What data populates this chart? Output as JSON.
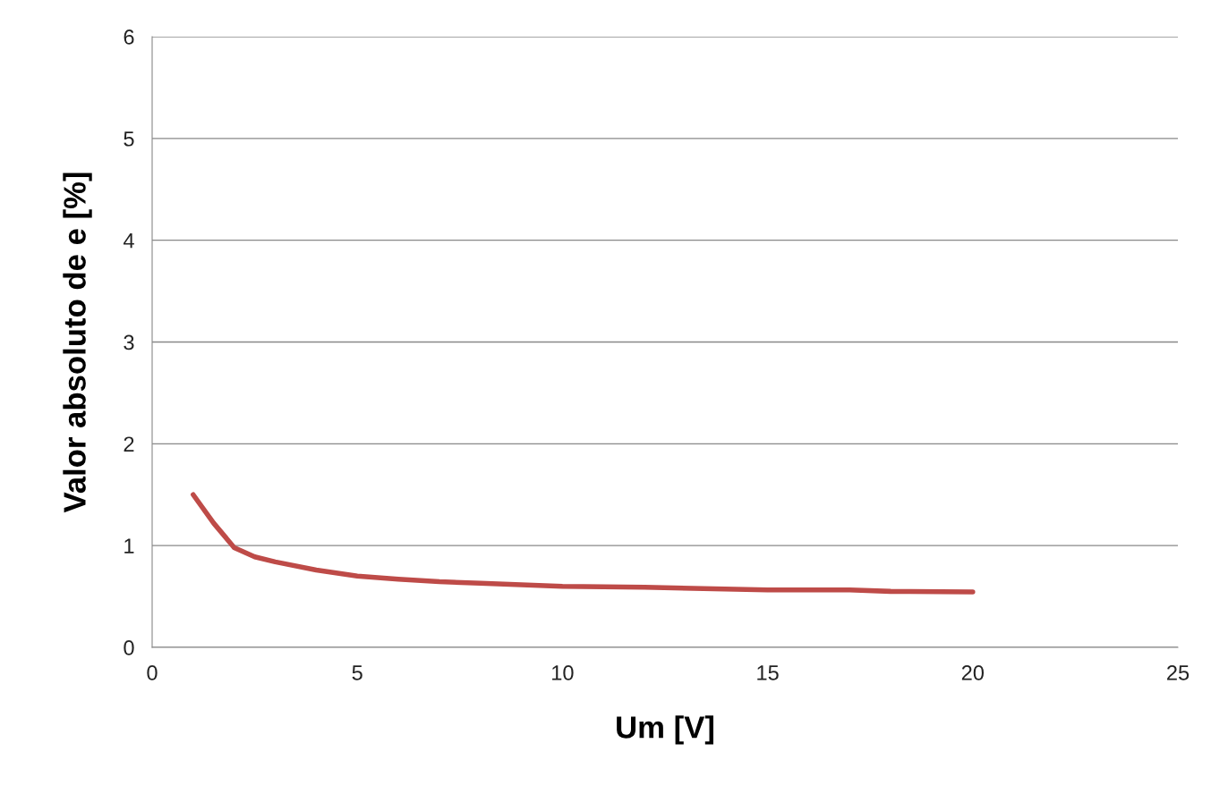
{
  "chart_data": {
    "type": "line",
    "xlabel": "Um [V]",
    "ylabel": "Valor absoluto de e [%]",
    "x": [
      1,
      1.5,
      2,
      2.5,
      3,
      4,
      5,
      6,
      7,
      8,
      10,
      12,
      15,
      17,
      18,
      20
    ],
    "series": [
      {
        "color": "#be4b48",
        "values": [
          1.5,
          1.22,
          0.98,
          0.89,
          0.84,
          0.76,
          0.7,
          0.67,
          0.645,
          0.63,
          0.6,
          0.59,
          0.565,
          0.565,
          0.55,
          0.545
        ]
      }
    ],
    "xlim": [
      0,
      25
    ],
    "xticks": [
      0,
      5,
      10,
      15,
      20,
      25
    ],
    "ylim": [
      0,
      6
    ],
    "yticks": [
      0,
      1,
      2,
      3,
      4,
      5,
      6
    ],
    "grid": "y",
    "marker": "none",
    "line_style": "solid",
    "legend": false
  }
}
